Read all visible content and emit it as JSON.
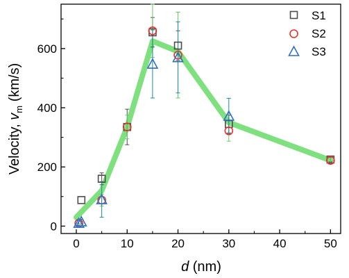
{
  "chart_data": {
    "type": "scatter",
    "title": "",
    "xlabel": {
      "var": "d",
      "unit": " (nm)"
    },
    "ylabel": {
      "main": "Velocity, ",
      "var": "v",
      "sub": "m",
      "unit": " (km/s)"
    },
    "xlim": [
      -3,
      52
    ],
    "ylim": [
      -25,
      750
    ],
    "xticks": [
      0,
      10,
      20,
      30,
      40,
      50
    ],
    "yticks": [
      0,
      200,
      400,
      600
    ],
    "xtick_labels": [
      "0",
      "10",
      "20",
      "30",
      "40",
      "50"
    ],
    "ytick_labels": [
      "0",
      "200",
      "400",
      "600"
    ],
    "grid": false,
    "legend_position": "top-right",
    "trend_line": {
      "color": "#7ee07e",
      "x": [
        0,
        5,
        10,
        15,
        20,
        30,
        50
      ],
      "y": [
        30,
        120,
        335,
        625,
        590,
        350,
        222
      ]
    },
    "series": [
      {
        "name": "S1",
        "marker": "square",
        "color": "#4d4d4d",
        "error_color": "#4d4d4d",
        "x": [
          1,
          5,
          10,
          15,
          20,
          30,
          50
        ],
        "y": [
          88,
          160,
          335,
          655,
          610,
          345,
          225
        ],
        "err": [
          0,
          20,
          60,
          50,
          50,
          30,
          8
        ]
      },
      {
        "name": "S2",
        "marker": "circle",
        "color": "#e8322e",
        "error_color": "#66cc66",
        "x": [
          0.5,
          5,
          10,
          15,
          20,
          30,
          50
        ],
        "y": [
          10,
          88,
          335,
          660,
          578,
          322,
          222
        ],
        "err": [
          0,
          20,
          40,
          90,
          145,
          35,
          8
        ]
      },
      {
        "name": "S3",
        "marker": "triangle",
        "color": "#2f6fc0",
        "error_color": "#1a8a9a",
        "x": [
          0.5,
          1,
          5,
          15,
          20,
          30
        ],
        "y": [
          10,
          15,
          90,
          548,
          570,
          372
        ],
        "err": [
          8,
          8,
          60,
          115,
          120,
          60
        ]
      }
    ]
  }
}
